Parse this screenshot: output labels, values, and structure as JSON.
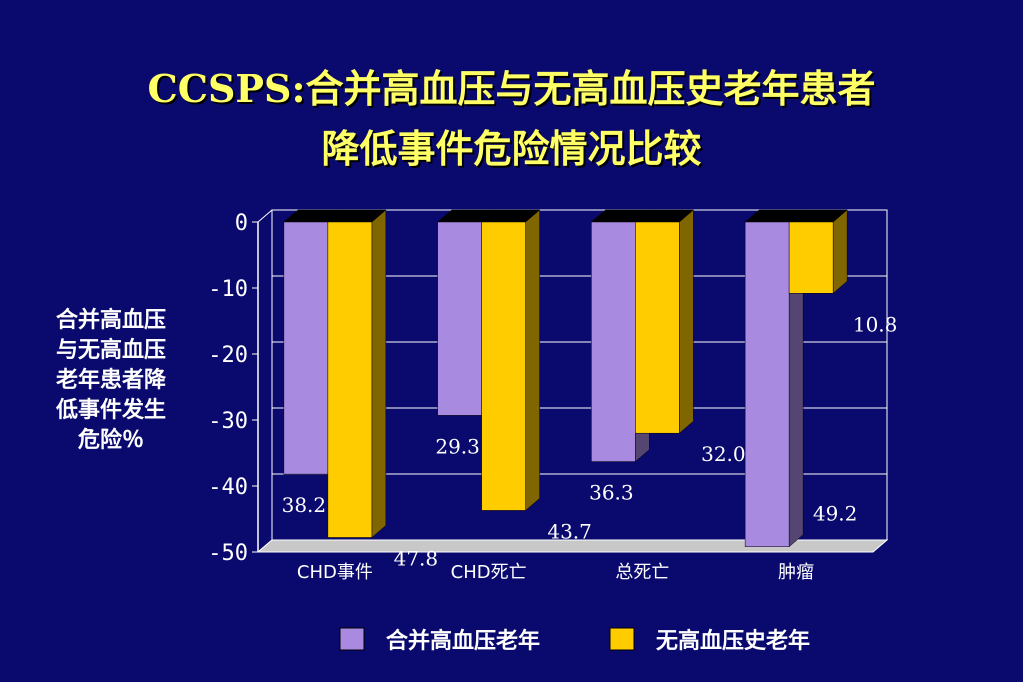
{
  "slide": {
    "title_line1": "CCSPS:合并高血压与无高血压史老年患者",
    "title_line2": "降低事件危险情况比较"
  },
  "chart_data": {
    "type": "bar",
    "categories": [
      "CHD事件",
      "CHD死亡",
      "总死亡",
      "肿瘤"
    ],
    "series": [
      {
        "name": "合并高血压老年",
        "values": [
          -38.2,
          -29.3,
          -36.3,
          -49.2
        ],
        "labels": [
          "38.2",
          "29.3",
          "36.3",
          "49.2"
        ],
        "color": "#a88be0"
      },
      {
        "name": "无高血压史老年",
        "values": [
          -47.8,
          -43.7,
          -32.0,
          -10.8
        ],
        "labels": [
          "47.8",
          "43.7",
          "32.0",
          "10.8"
        ],
        "color": "#ffcc00"
      }
    ],
    "ylabel": "合并高血压与无高血压老年患者降低事件发生危险％",
    "ylabel_lines": [
      "合并高血压",
      "与无高血压",
      "老年患者降",
      "低事件发生",
      "危险％"
    ],
    "yticks": [
      "0",
      "-10",
      "-20",
      "-30",
      "-40",
      "-50"
    ],
    "yticks_values": [
      0,
      -10,
      -20,
      -30,
      -40,
      -50
    ],
    "ylim": [
      -50,
      0
    ],
    "grid": true,
    "legend": "bottom"
  },
  "colors": {
    "background": "#0a0a6e",
    "title": "#ffff66",
    "series1": "#a88be0",
    "series2": "#ffcc00"
  }
}
